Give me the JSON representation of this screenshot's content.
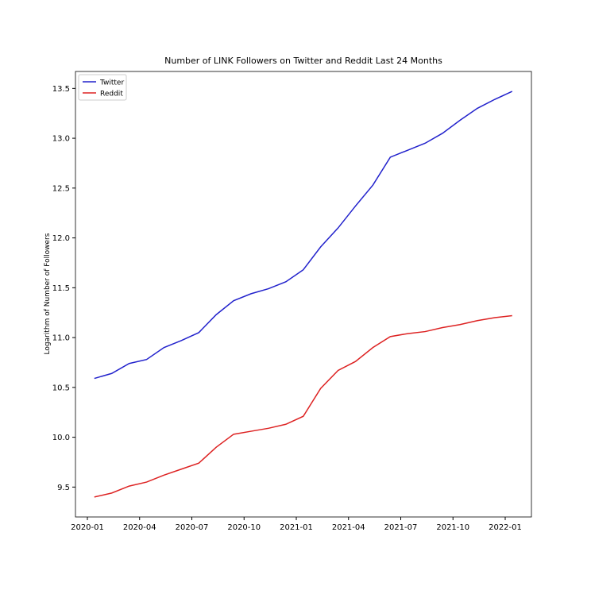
{
  "chart_data": {
    "type": "line",
    "title": "Number of LINK Followers on Twitter and Reddit Last 24 Months",
    "y_label": "Logarithm of Number of Followers",
    "x": [
      "2020-01",
      "2020-02",
      "2020-03",
      "2020-04",
      "2020-05",
      "2020-06",
      "2020-07",
      "2020-08",
      "2020-09",
      "2020-10",
      "2020-11",
      "2020-12",
      "2021-01",
      "2021-02",
      "2021-03",
      "2021-04",
      "2021-05",
      "2021-06",
      "2021-07",
      "2021-08",
      "2021-09",
      "2021-10",
      "2021-11",
      "2021-12",
      "2022-01"
    ],
    "series": [
      {
        "name": "Twitter",
        "color": "#2222cc",
        "values": [
          10.59,
          10.64,
          10.74,
          10.78,
          10.9,
          10.97,
          11.05,
          11.23,
          11.37,
          11.44,
          11.49,
          11.56,
          11.68,
          11.91,
          12.1,
          12.32,
          12.53,
          12.81,
          12.88,
          12.95,
          13.05,
          13.18,
          13.3,
          13.39,
          13.47
        ]
      },
      {
        "name": "Reddit",
        "color": "#dd2222",
        "values": [
          9.4,
          9.44,
          9.51,
          9.55,
          9.62,
          9.68,
          9.74,
          9.9,
          10.03,
          10.06,
          10.09,
          10.13,
          10.21,
          10.49,
          10.67,
          10.76,
          10.9,
          11.01,
          11.04,
          11.06,
          11.1,
          11.13,
          11.17,
          11.2,
          11.22
        ]
      }
    ],
    "xticks": [
      "2020-01",
      "2020-04",
      "2020-07",
      "2020-10",
      "2021-01",
      "2021-04",
      "2021-07",
      "2021-10",
      "2022-01"
    ],
    "ylim": [
      9.2,
      13.67
    ],
    "yticks": [
      9.5,
      {
        "value": 10,
        "label": "10.0"
      },
      10.5,
      {
        "value": 11,
        "label": "11.0"
      },
      11.5,
      {
        "value": 12,
        "label": "12.0"
      },
      12.5,
      {
        "value": 13,
        "label": "13.0"
      },
      13.5
    ],
    "legend": "upper left"
  }
}
